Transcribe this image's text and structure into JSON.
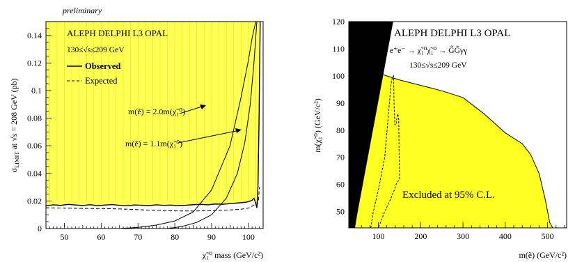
{
  "chart_data": [
    {
      "type": "line",
      "name_note": "",
      "watermark": "preliminary",
      "experiments": "ALEPH DELPHI L3 OPAL",
      "energy_range": "130≤√s≤209 GeV",
      "xlabel": "χ̃₁⁰ mass (GeV/c²)",
      "ylabel": "σLIMIT at √s = 208 GeV (pb)",
      "ylabel_sigma": "σ",
      "ylabel_sub": "LIMIT",
      "ylabel_rest": " at √s = 208 GeV (pb)",
      "xlim": [
        45,
        104
      ],
      "ylim": [
        0,
        0.15
      ],
      "xticks": [
        50,
        60,
        70,
        80,
        90,
        100
      ],
      "yticks": [
        0,
        0.02,
        0.04,
        0.06,
        0.08,
        0.1,
        0.12,
        0.14
      ],
      "legend": {
        "observed": "Observed",
        "expected": "Expected"
      },
      "annotations": [
        {
          "text": "m(ẽ) = 2.0m(χ̃₁⁰)"
        },
        {
          "text": "m(ẽ) = 1.1m(χ̃₁⁰)"
        }
      ],
      "series": [
        {
          "name": "Observed",
          "style": "solid",
          "x": [
            45,
            47,
            49,
            51,
            53,
            55,
            57,
            59,
            61,
            63,
            65,
            67,
            69,
            71,
            73,
            75,
            77,
            79,
            81,
            83,
            85,
            87,
            89,
            91,
            93,
            95,
            97,
            99,
            100,
            101,
            101.5,
            102,
            102.3,
            102.6,
            102.9,
            103.2
          ],
          "y": [
            0.0165,
            0.0172,
            0.0168,
            0.0175,
            0.0171,
            0.0167,
            0.0173,
            0.0166,
            0.017,
            0.0174,
            0.0168,
            0.0165,
            0.0171,
            0.0169,
            0.0166,
            0.0172,
            0.0168,
            0.017,
            0.0166,
            0.0169,
            0.0173,
            0.0175,
            0.0172,
            0.0178,
            0.0176,
            0.0181,
            0.0185,
            0.019,
            0.0195,
            0.0205,
            0.022,
            0.018,
            0.015,
            0.03,
            0.08,
            0.15
          ]
        },
        {
          "name": "Expected",
          "style": "dashed",
          "x": [
            45,
            50,
            55,
            60,
            65,
            70,
            75,
            80,
            85,
            90,
            95,
            98,
            100,
            101,
            101.8,
            102.3,
            102.7,
            103.0
          ],
          "y": [
            0.015,
            0.0148,
            0.0146,
            0.0145,
            0.0142,
            0.0137,
            0.0132,
            0.0128,
            0.0127,
            0.013,
            0.0135,
            0.014,
            0.0148,
            0.0162,
            0.0175,
            0.017,
            0.02,
            0.03
          ]
        },
        {
          "name": "m(ẽ) = 2.0m(χ̃₁⁰)",
          "style": "thin",
          "x": [
            65,
            70,
            75,
            80,
            85,
            90,
            95,
            98,
            100,
            101,
            102
          ],
          "y": [
            0.0,
            0.0008,
            0.0025,
            0.0055,
            0.012,
            0.028,
            0.06,
            0.095,
            0.122,
            0.138,
            0.15
          ]
        },
        {
          "name": "m(ẽ) = 1.1m(χ̃₁⁰)",
          "style": "thin",
          "x": [
            78,
            82,
            86,
            90,
            94,
            97,
            99,
            100.5,
            101.5,
            102.3
          ],
          "y": [
            0.0,
            0.0015,
            0.0045,
            0.01,
            0.022,
            0.04,
            0.062,
            0.09,
            0.12,
            0.15
          ]
        }
      ],
      "excluded_region": "above observed curve (shaded yellow)"
    },
    {
      "type": "area",
      "experiments": "ALEPH DELPHI L3 OPAL",
      "process": "e⁺e⁻ → χ̃₁⁰χ̃₁⁰ → G̃G̃γγ",
      "energy_range": "130≤√s≤209 GeV",
      "region_label": "Excluded at 95% C.L.",
      "xlabel": "m(ẽ) (GeV/c²)",
      "ylabel": "m(χ̃₁⁰) (GeV/c²)",
      "xlim": [
        30,
        545
      ],
      "ylim": [
        44,
        120
      ],
      "xticks": [
        100,
        200,
        300,
        400,
        500
      ],
      "yticks": [
        50,
        60,
        70,
        80,
        90,
        100,
        110,
        120
      ],
      "kinematically_forbidden": {
        "description": "m(χ̃₁⁰) > m(ẽ)",
        "x": [
          30,
          30,
          80,
          135,
          44
        ],
        "y": [
          44,
          120,
          120,
          120,
          44
        ]
      },
      "series": [
        {
          "name": "Excluded",
          "style": "filled",
          "x": [
            44,
            100,
            150,
            200,
            250,
            300,
            350,
            400,
            440,
            460,
            480,
            495,
            505,
            512
          ],
          "y": [
            44,
            101,
            98.5,
            96.5,
            94.5,
            92,
            86,
            79,
            75,
            71,
            64,
            54,
            46,
            44
          ]
        },
        {
          "name": "Expected",
          "style": "dashed",
          "x": [
            82,
            88,
            100,
            115,
            125,
            130,
            133,
            136,
            137,
            139,
            142,
            144,
            146,
            148,
            150,
            142,
            138,
            135,
            130,
            115,
            105,
            100
          ],
          "y": [
            44,
            50,
            58,
            70,
            88,
            97,
            99.5,
            100,
            90,
            82,
            82,
            85,
            86,
            84,
            62,
            60,
            58,
            57,
            55,
            50,
            46,
            44
          ]
        }
      ]
    }
  ]
}
